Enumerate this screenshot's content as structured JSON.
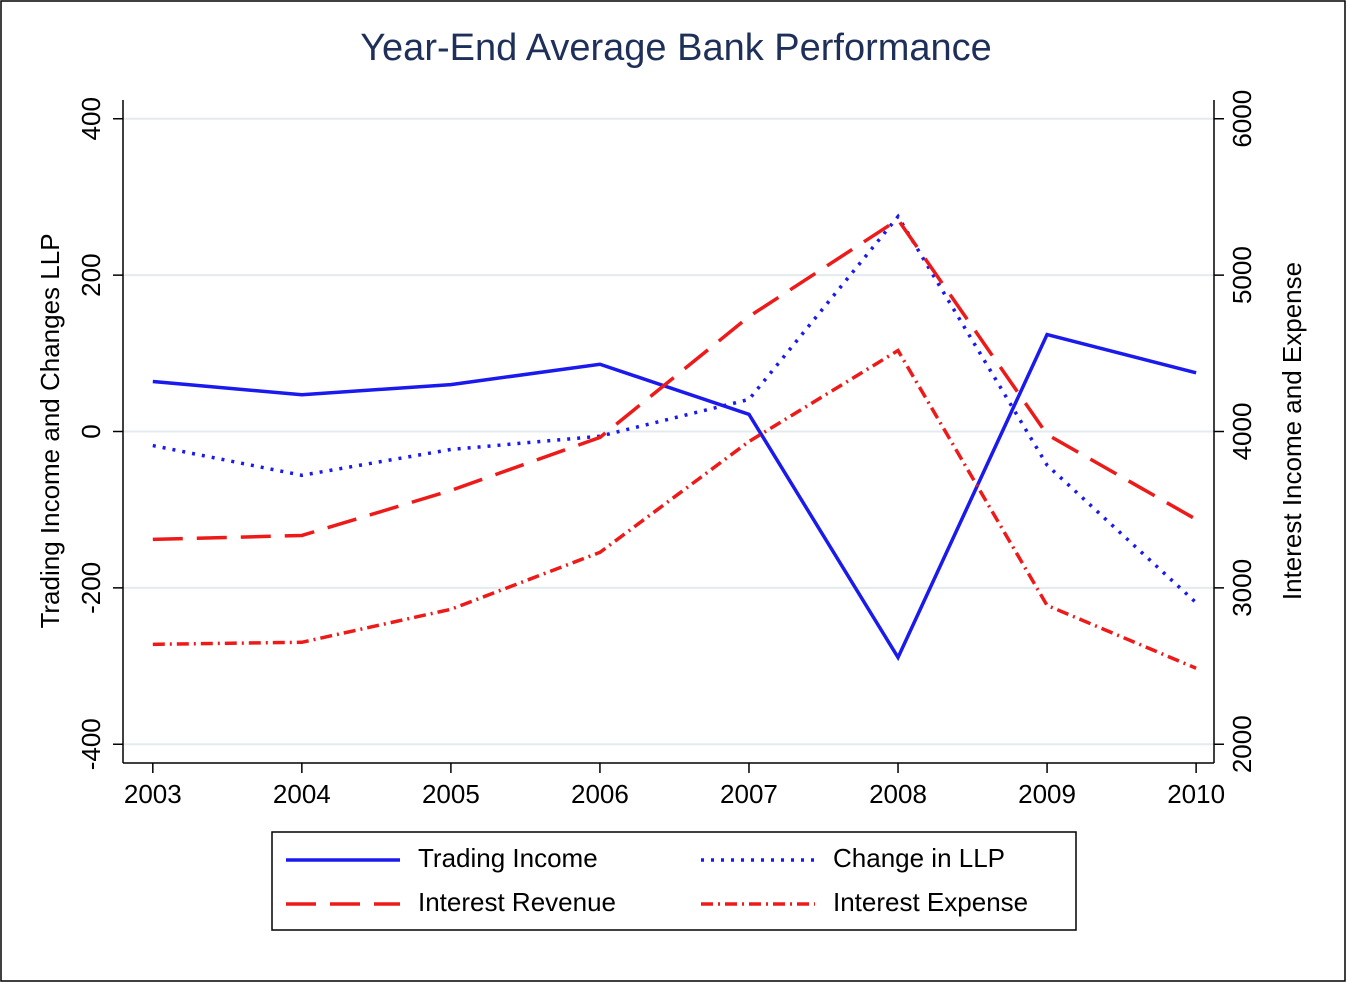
{
  "chart_data": {
    "type": "line",
    "title": "Year-End Average Bank Performance",
    "y_label": "Trading Income and Changes LLP",
    "y2_label": "Interest Income and Expense",
    "x": [
      2003,
      2004,
      2005,
      2006,
      2007,
      2008,
      2009,
      2010
    ],
    "xlim": [
      2002.8,
      2010.12
    ],
    "xticks": [
      2003,
      2004,
      2005,
      2006,
      2007,
      2008,
      2009,
      2010
    ],
    "ylim": [
      -424,
      424
    ],
    "yticks": [
      -400,
      -200,
      0,
      200,
      400
    ],
    "y2lim": [
      1880,
      6120
    ],
    "y2ticks": [
      2000,
      3000,
      4000,
      5000,
      6000
    ],
    "grid": true,
    "legend": "bottom",
    "series": [
      {
        "name": "Trading Income",
        "color": "#1a1aee",
        "dash": "solid",
        "values": [
          64,
          47,
          60,
          86,
          22,
          -289,
          124,
          75
        ]
      },
      {
        "name": "Change in LLP",
        "color": "#1a1aee",
        "dash": "dotted",
        "values": [
          -18,
          -56,
          -23,
          -6,
          41,
          275,
          -43,
          -219
        ]
      },
      {
        "name": "Interest Revenue",
        "color": "#ee1a1a",
        "dash": "longdash",
        "axis": "y2",
        "values": [
          3310,
          3335,
          3623,
          3962,
          4735,
          5355,
          3981,
          3438
        ]
      },
      {
        "name": "Interest Expense",
        "color": "#ee1a1a",
        "dash": "dashdot",
        "axis": "y2",
        "values": [
          2639,
          2652,
          2863,
          3227,
          3936,
          4518,
          2888,
          2486
        ]
      }
    ]
  }
}
